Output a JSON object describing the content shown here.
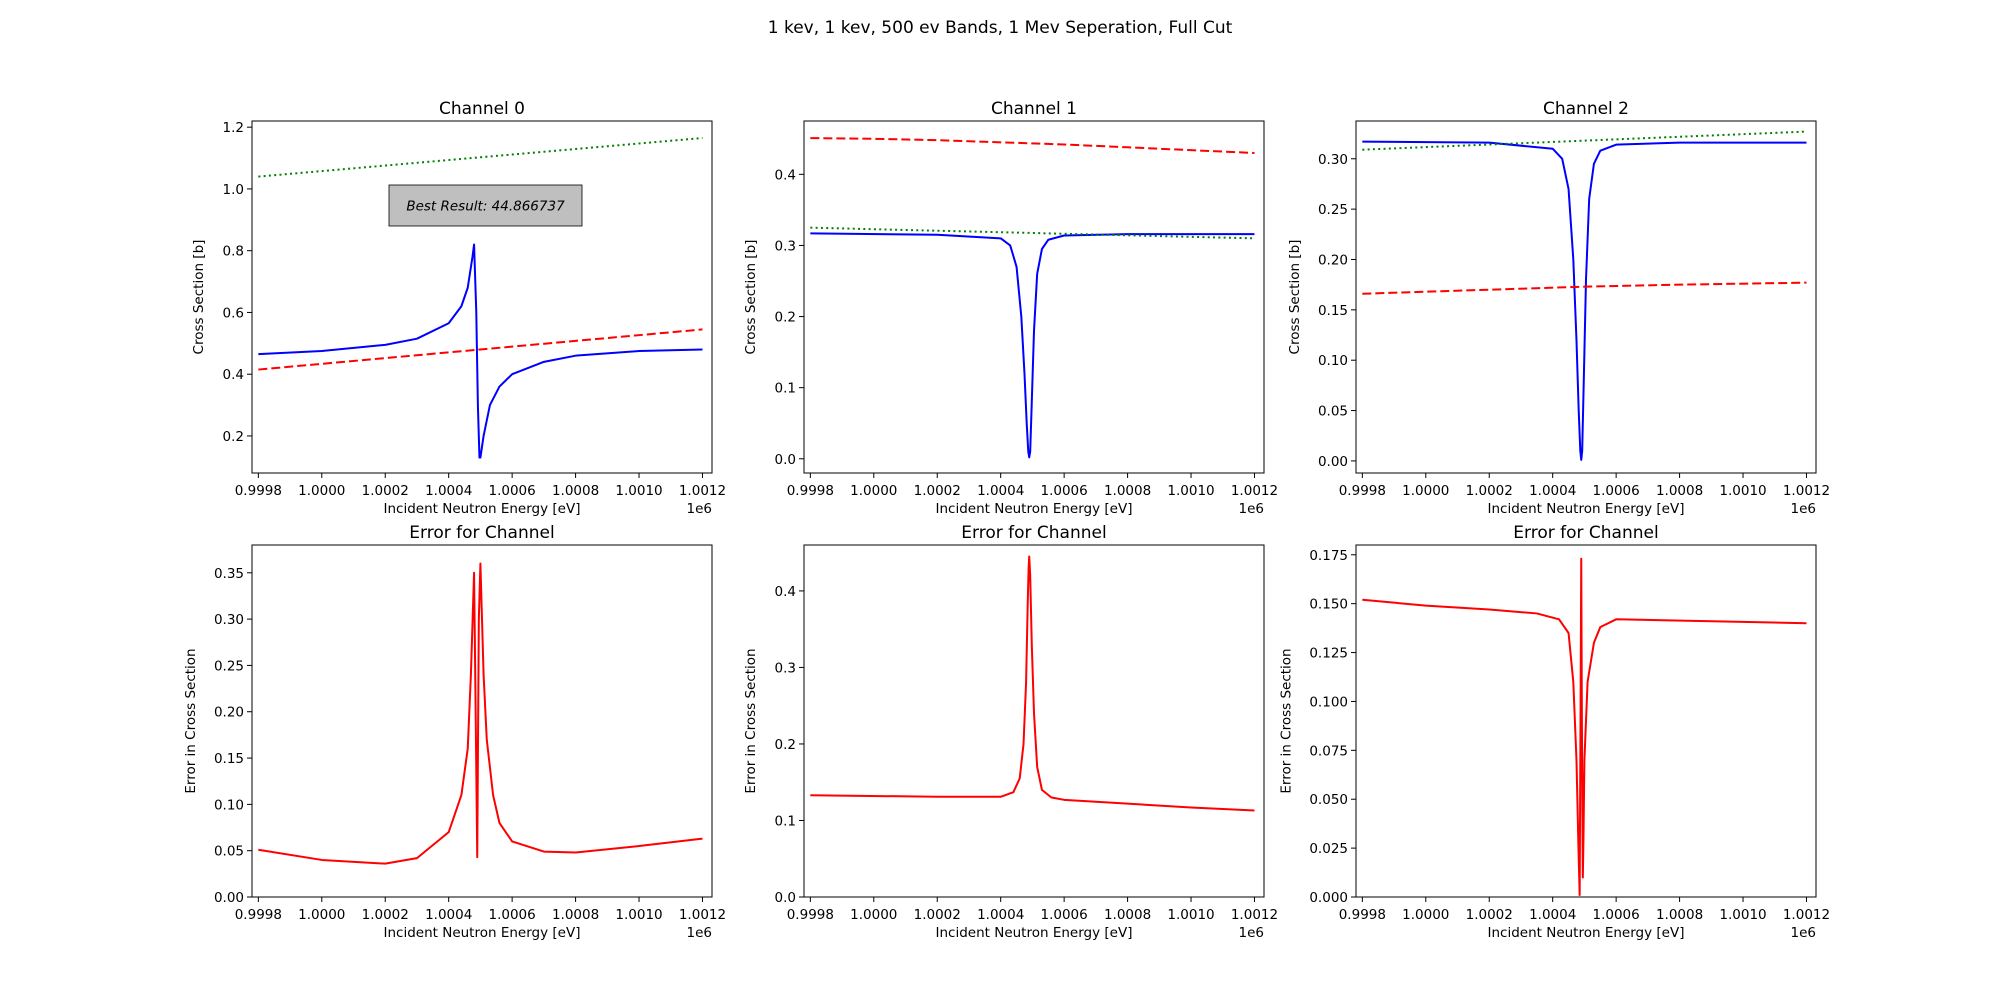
{
  "figure": {
    "suptitle": "1 kev, 1 kev, 500 ev Bands, 1 Mev Seperation, Full Cut",
    "annotation": "Best Result: 44.866737",
    "x_offset_label": "1e6"
  },
  "colors": {
    "fit": "#0000ff",
    "dashed": "#ff0000",
    "dotted": "#008000",
    "error": "#ff0000",
    "annotation_box": "#bfbfbf"
  },
  "chart_data": [
    {
      "type": "line",
      "title": "Channel 0",
      "xlabel": "Incident Neutron Energy [eV]",
      "ylabel": "Cross Section [b]",
      "xlim": [
        999780,
        1001230
      ],
      "ylim": [
        0.08,
        1.22
      ],
      "x_ticks": [
        999800,
        1000000,
        1000200,
        1000400,
        1000600,
        1000800,
        1001000,
        1001200
      ],
      "x_tick_labels": [
        "0.9998",
        "1.0000",
        "1.0002",
        "1.0004",
        "1.0006",
        "1.0008",
        "1.0010",
        "1.0012"
      ],
      "y_ticks": [
        0.2,
        0.4,
        0.6,
        0.8,
        1.0,
        1.2
      ],
      "y_tick_labels": [
        "0.2",
        "0.4",
        "0.6",
        "0.8",
        "1.0",
        "1.2"
      ],
      "series": [
        {
          "style": "solid",
          "color": "#0000ff",
          "x": [
            999800,
            1000000,
            1000200,
            1000300,
            1000400,
            1000440,
            1000460,
            1000475,
            1000480,
            1000487,
            1000492,
            1000497,
            1000500,
            1000510,
            1000530,
            1000560,
            1000600,
            1000700,
            1000800,
            1001000,
            1001200
          ],
          "y": [
            0.465,
            0.475,
            0.495,
            0.515,
            0.565,
            0.62,
            0.68,
            0.78,
            0.82,
            0.6,
            0.3,
            0.13,
            0.13,
            0.2,
            0.3,
            0.36,
            0.4,
            0.44,
            0.46,
            0.475,
            0.48
          ]
        },
        {
          "style": "dashed",
          "color": "#ff0000",
          "x": [
            999800,
            1001200
          ],
          "y": [
            0.415,
            0.545
          ]
        },
        {
          "style": "dotted",
          "color": "#008000",
          "x": [
            999800,
            1001200
          ],
          "y": [
            1.04,
            1.165
          ]
        }
      ]
    },
    {
      "type": "line",
      "title": "Channel 1",
      "xlabel": "Incident Neutron Energy [eV]",
      "ylabel": "Cross Section [b]",
      "xlim": [
        999780,
        1001230
      ],
      "ylim": [
        -0.02,
        0.475
      ],
      "x_ticks": [
        999800,
        1000000,
        1000200,
        1000400,
        1000600,
        1000800,
        1001000,
        1001200
      ],
      "x_tick_labels": [
        "0.9998",
        "1.0000",
        "1.0002",
        "1.0004",
        "1.0006",
        "1.0008",
        "1.0010",
        "1.0012"
      ],
      "y_ticks": [
        0.0,
        0.1,
        0.2,
        0.3,
        0.4
      ],
      "y_tick_labels": [
        "0.0",
        "0.1",
        "0.2",
        "0.3",
        "0.4"
      ],
      "series": [
        {
          "style": "solid",
          "color": "#0000ff",
          "x": [
            999800,
            1000200,
            1000400,
            1000430,
            1000450,
            1000465,
            1000475,
            1000482,
            1000487,
            1000490,
            1000493,
            1000498,
            1000505,
            1000515,
            1000530,
            1000550,
            1000600,
            1000800,
            1001200
          ],
          "y": [
            0.317,
            0.315,
            0.31,
            0.3,
            0.27,
            0.2,
            0.12,
            0.05,
            0.01,
            0.002,
            0.01,
            0.08,
            0.18,
            0.26,
            0.295,
            0.308,
            0.314,
            0.316,
            0.316
          ]
        },
        {
          "style": "dashed",
          "color": "#ff0000",
          "x": [
            999800,
            1000000,
            1000200,
            1000400,
            1000600,
            1000800,
            1001000,
            1001200
          ],
          "y": [
            0.451,
            0.45,
            0.448,
            0.445,
            0.442,
            0.438,
            0.434,
            0.43
          ]
        },
        {
          "style": "dotted",
          "color": "#008000",
          "x": [
            999800,
            1001200
          ],
          "y": [
            0.325,
            0.31
          ]
        }
      ]
    },
    {
      "type": "line",
      "title": "Channel 2",
      "xlabel": "Incident Neutron Energy [eV]",
      "ylabel": "Cross Section [b]",
      "xlim": [
        999780,
        1001230
      ],
      "ylim": [
        -0.012,
        0.3375
      ],
      "x_ticks": [
        999800,
        1000000,
        1000200,
        1000400,
        1000600,
        1000800,
        1001000,
        1001200
      ],
      "x_tick_labels": [
        "0.9998",
        "1.0000",
        "1.0002",
        "1.0004",
        "1.0006",
        "1.0008",
        "1.0010",
        "1.0012"
      ],
      "y_ticks": [
        0.0,
        0.05,
        0.1,
        0.15,
        0.2,
        0.25,
        0.3
      ],
      "y_tick_labels": [
        "0.00",
        "0.05",
        "0.10",
        "0.15",
        "0.20",
        "0.25",
        "0.30"
      ],
      "series": [
        {
          "style": "solid",
          "color": "#0000ff",
          "x": [
            999800,
            1000200,
            1000400,
            1000430,
            1000450,
            1000465,
            1000475,
            1000482,
            1000487,
            1000490,
            1000493,
            1000498,
            1000505,
            1000515,
            1000530,
            1000550,
            1000600,
            1000800,
            1001200
          ],
          "y": [
            0.317,
            0.316,
            0.31,
            0.3,
            0.27,
            0.2,
            0.12,
            0.05,
            0.01,
            0.001,
            0.01,
            0.08,
            0.18,
            0.26,
            0.295,
            0.308,
            0.314,
            0.316,
            0.316
          ]
        },
        {
          "style": "dashed",
          "color": "#ff0000",
          "x": [
            999800,
            1000200,
            1000500,
            1000800,
            1001200
          ],
          "y": [
            0.166,
            0.17,
            0.173,
            0.175,
            0.177
          ]
        },
        {
          "style": "dotted",
          "color": "#008000",
          "x": [
            999800,
            1001200
          ],
          "y": [
            0.309,
            0.327
          ]
        }
      ]
    },
    {
      "type": "line",
      "title": "Error for Channel",
      "xlabel": "Incident Neutron Energy [eV]",
      "ylabel": "Error in Cross Section",
      "xlim": [
        999780,
        1001230
      ],
      "ylim": [
        0.0,
        0.38
      ],
      "x_ticks": [
        999800,
        1000000,
        1000200,
        1000400,
        1000600,
        1000800,
        1001000,
        1001200
      ],
      "x_tick_labels": [
        "0.9998",
        "1.0000",
        "1.0002",
        "1.0004",
        "1.0006",
        "1.0008",
        "1.0010",
        "1.0012"
      ],
      "y_ticks": [
        0.0,
        0.05,
        0.1,
        0.15,
        0.2,
        0.25,
        0.3,
        0.35
      ],
      "y_tick_labels": [
        "0.00",
        "0.05",
        "0.10",
        "0.15",
        "0.20",
        "0.25",
        "0.30",
        "0.35"
      ],
      "series": [
        {
          "style": "solid",
          "color": "#ff0000",
          "x": [
            999800,
            1000000,
            1000200,
            1000300,
            1000400,
            1000440,
            1000460,
            1000470,
            1000480,
            1000485,
            1000490,
            1000495,
            1000500,
            1000510,
            1000520,
            1000540,
            1000560,
            1000600,
            1000700,
            1000800,
            1001000,
            1001200
          ],
          "y": [
            0.051,
            0.04,
            0.036,
            0.042,
            0.07,
            0.11,
            0.16,
            0.24,
            0.35,
            0.2,
            0.043,
            0.3,
            0.36,
            0.24,
            0.17,
            0.11,
            0.08,
            0.06,
            0.049,
            0.048,
            0.055,
            0.063
          ]
        }
      ]
    },
    {
      "type": "line",
      "title": "Error for Channel",
      "xlabel": "Incident Neutron Energy [eV]",
      "ylabel": "Error in Cross Section",
      "xlim": [
        999780,
        1001230
      ],
      "ylim": [
        0.0,
        0.46
      ],
      "x_ticks": [
        999800,
        1000000,
        1000200,
        1000400,
        1000600,
        1000800,
        1001000,
        1001200
      ],
      "x_tick_labels": [
        "0.9998",
        "1.0000",
        "1.0002",
        "1.0004",
        "1.0006",
        "1.0008",
        "1.0010",
        "1.0012"
      ],
      "y_ticks": [
        0.0,
        0.1,
        0.2,
        0.3,
        0.4
      ],
      "y_tick_labels": [
        "0.0",
        "0.1",
        "0.2",
        "0.3",
        "0.4"
      ],
      "series": [
        {
          "style": "solid",
          "color": "#ff0000",
          "x": [
            999800,
            1000200,
            1000400,
            1000440,
            1000460,
            1000472,
            1000480,
            1000485,
            1000488,
            1000490,
            1000493,
            1000498,
            1000505,
            1000515,
            1000530,
            1000560,
            1000600,
            1000800,
            1001000,
            1001200
          ],
          "y": [
            0.133,
            0.131,
            0.131,
            0.137,
            0.155,
            0.2,
            0.28,
            0.38,
            0.43,
            0.445,
            0.42,
            0.33,
            0.24,
            0.17,
            0.14,
            0.13,
            0.127,
            0.122,
            0.117,
            0.113
          ]
        }
      ]
    },
    {
      "type": "line",
      "title": "Error for Channel",
      "xlabel": "Incident Neutron Energy [eV]",
      "ylabel": "Error in Cross Section",
      "xlim": [
        999780,
        1001230
      ],
      "ylim": [
        0.0,
        0.18
      ],
      "x_ticks": [
        999800,
        1000000,
        1000200,
        1000400,
        1000600,
        1000800,
        1001000,
        1001200
      ],
      "x_tick_labels": [
        "0.9998",
        "1.0000",
        "1.0002",
        "1.0004",
        "1.0006",
        "1.0008",
        "1.0010",
        "1.0012"
      ],
      "y_ticks": [
        0.0,
        0.025,
        0.05,
        0.075,
        0.1,
        0.125,
        0.15,
        0.175
      ],
      "y_tick_labels": [
        "0.000",
        "0.025",
        "0.050",
        "0.075",
        "0.100",
        "0.125",
        "0.150",
        "0.175"
      ],
      "series": [
        {
          "style": "solid",
          "color": "#ff0000",
          "x": [
            999800,
            1000000,
            1000200,
            1000350,
            1000420,
            1000450,
            1000465,
            1000475,
            1000482,
            1000485,
            1000488,
            1000490,
            1000492,
            1000495,
            1000497,
            1000500,
            1000510,
            1000530,
            1000550,
            1000600,
            1001200
          ],
          "y": [
            0.152,
            0.149,
            0.147,
            0.145,
            0.142,
            0.135,
            0.11,
            0.07,
            0.02,
            0.001,
            0.1,
            0.173,
            0.09,
            0.01,
            0.03,
            0.07,
            0.11,
            0.13,
            0.138,
            0.142,
            0.14
          ]
        }
      ]
    }
  ]
}
